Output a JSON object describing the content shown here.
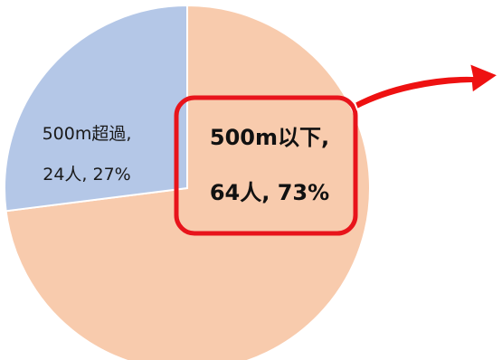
{
  "chart_data": {
    "type": "pie",
    "slices": [
      {
        "label": "500m以下",
        "count": "64人",
        "percent": "73%",
        "value": 73,
        "color": "#f8cbad"
      },
      {
        "label": "500m超過",
        "count": "24人",
        "percent": "27%",
        "value": 27,
        "color": "#b4c7e7"
      }
    ],
    "data_labels": [
      {
        "line1": "500m以下,",
        "line2": "64人, 73%"
      },
      {
        "line1": "500m超過,",
        "line2": "24人, 27%"
      }
    ]
  },
  "highlight": {
    "box_color": "#e8141b",
    "arrow_color": "#ee1111"
  }
}
